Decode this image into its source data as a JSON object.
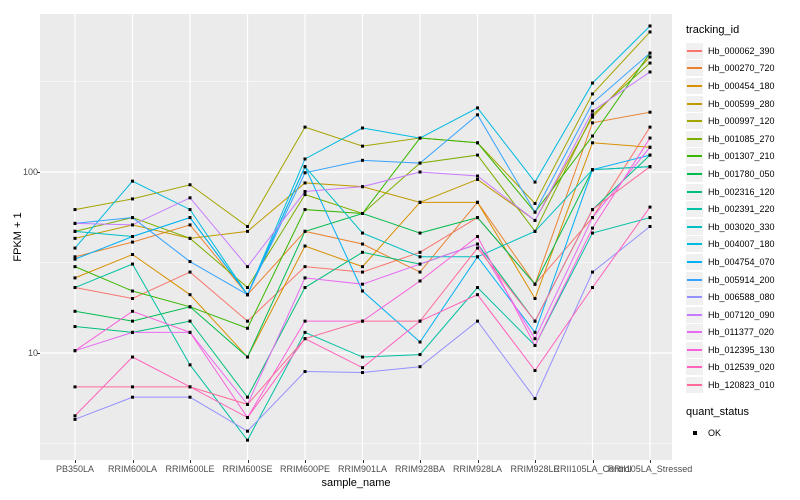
{
  "chart_data": {
    "type": "line",
    "title": "",
    "xlabel": "sample_name",
    "ylabel": "FPKM + 1",
    "y_scale": "log10",
    "y_ticks": [
      10,
      100
    ],
    "y_minor_ticks": [
      3.162,
      31.62,
      316.2
    ],
    "ylim": [
      2.5,
      750
    ],
    "grid": "on",
    "legend_position": "right",
    "point_marker": "black-square",
    "categories": [
      "PB350LA",
      "RRIM600LA",
      "RRIM600LE",
      "RRIM600SE",
      "RRIM600PE",
      "RRIM901LA",
      "RRIM928BA",
      "RRIM928LA",
      "RRIM928LE",
      "RRII105LA_Control",
      "RRII105LA_Stressed"
    ],
    "series": [
      {
        "name": "Hb_000062_390",
        "color": "#F8766D",
        "values": [
          23,
          20,
          28,
          15,
          30,
          28,
          36,
          56,
          24,
          56,
          177
        ]
      },
      {
        "name": "Hb_000270_720",
        "color": "#EA8331",
        "values": [
          34,
          41,
          51,
          21,
          47,
          40,
          28,
          68,
          24,
          187,
          214
        ]
      },
      {
        "name": "Hb_000454_180",
        "color": "#D89000",
        "values": [
          26,
          35,
          21,
          9.5,
          39,
          30,
          68,
          68,
          20,
          145,
          137
        ]
      },
      {
        "name": "Hb_000599_280",
        "color": "#C09B00",
        "values": [
          43,
          51,
          43,
          47,
          87,
          83,
          68,
          91,
          54,
          201,
          432
        ]
      },
      {
        "name": "Hb_000997_120",
        "color": "#A3A500",
        "values": [
          62,
          71,
          85,
          50,
          177,
          139,
          154,
          145,
          67,
          270,
          594
        ]
      },
      {
        "name": "Hb_001085_270",
        "color": "#7CAE00",
        "values": [
          47,
          56,
          43,
          23,
          75,
          59,
          112,
          124,
          47,
          207,
          400
        ]
      },
      {
        "name": "Hb_001307_210",
        "color": "#39B600",
        "values": [
          30,
          22,
          18,
          13.7,
          62,
          59,
          154,
          145,
          60,
          158,
          454
        ]
      },
      {
        "name": "Hb_001780_050",
        "color": "#00BB4E",
        "values": [
          17,
          15,
          18,
          9.5,
          47,
          59,
          46,
          56,
          24,
          103,
          107
        ]
      },
      {
        "name": "Hb_002316_120",
        "color": "#00BF7D",
        "values": [
          14,
          13,
          15,
          5.7,
          23,
          36,
          31,
          40,
          15,
          62,
          124
        ]
      },
      {
        "name": "Hb_002391_220",
        "color": "#00C1A3",
        "values": [
          23,
          31,
          8.6,
          3.3,
          13,
          9.5,
          9.8,
          23,
          11,
          46,
          56
        ]
      },
      {
        "name": "Hb_003020_330",
        "color": "#00BFC4",
        "values": [
          47,
          44,
          56,
          21,
          107,
          46,
          34,
          34,
          47,
          103,
          107
        ]
      },
      {
        "name": "Hb_004007_180",
        "color": "#00BAE0",
        "values": [
          38,
          89,
          62,
          21,
          118,
          175,
          154,
          226,
          88,
          310,
          641
        ]
      },
      {
        "name": "Hb_004754_070",
        "color": "#00B0F6",
        "values": [
          33,
          44,
          56,
          21,
          107,
          22,
          11.5,
          34,
          13,
          103,
          124
        ]
      },
      {
        "name": "Hb_005914_200",
        "color": "#35A2FF",
        "values": [
          52,
          56,
          32,
          21,
          99,
          116,
          112,
          207,
          60,
          240,
          454
        ]
      },
      {
        "name": "Hb_006588_080",
        "color": "#9590FF",
        "values": [
          4.3,
          5.7,
          5.7,
          3.7,
          7.9,
          7.8,
          8.4,
          15,
          5.6,
          28,
          50
        ]
      },
      {
        "name": "Hb_007120_090",
        "color": "#C77CFF",
        "values": [
          52,
          51,
          72,
          30,
          78,
          83,
          100,
          95,
          54,
          217,
          357
        ]
      },
      {
        "name": "Hb_011377_020",
        "color": "#E76BF3",
        "values": [
          10.3,
          13,
          13,
          5.2,
          26,
          24,
          31,
          40,
          12,
          56,
          137
        ]
      },
      {
        "name": "Hb_012395_130",
        "color": "#FA62DB",
        "values": [
          10.3,
          17,
          13,
          4.4,
          15,
          15,
          25,
          44,
          11,
          49,
          154
        ]
      },
      {
        "name": "Hb_012539_020",
        "color": "#FF62BC",
        "values": [
          4.5,
          9.5,
          6.5,
          4.4,
          12,
          8.3,
          15,
          21,
          8,
          23,
          64
        ]
      },
      {
        "name": "Hb_120823_010",
        "color": "#FF6A98",
        "values": [
          6.5,
          6.5,
          6.5,
          5.2,
          12,
          15,
          15,
          38,
          15,
          62,
          107
        ]
      }
    ],
    "legend": {
      "color_title": "tracking_id",
      "shape_title": "quant_status",
      "shape_items": [
        {
          "label": "OK"
        }
      ]
    }
  },
  "panel": {
    "bg": "#EBEBEB",
    "grid_color": "#FFFFFF",
    "tick_label_color": "#4D4D4D"
  }
}
